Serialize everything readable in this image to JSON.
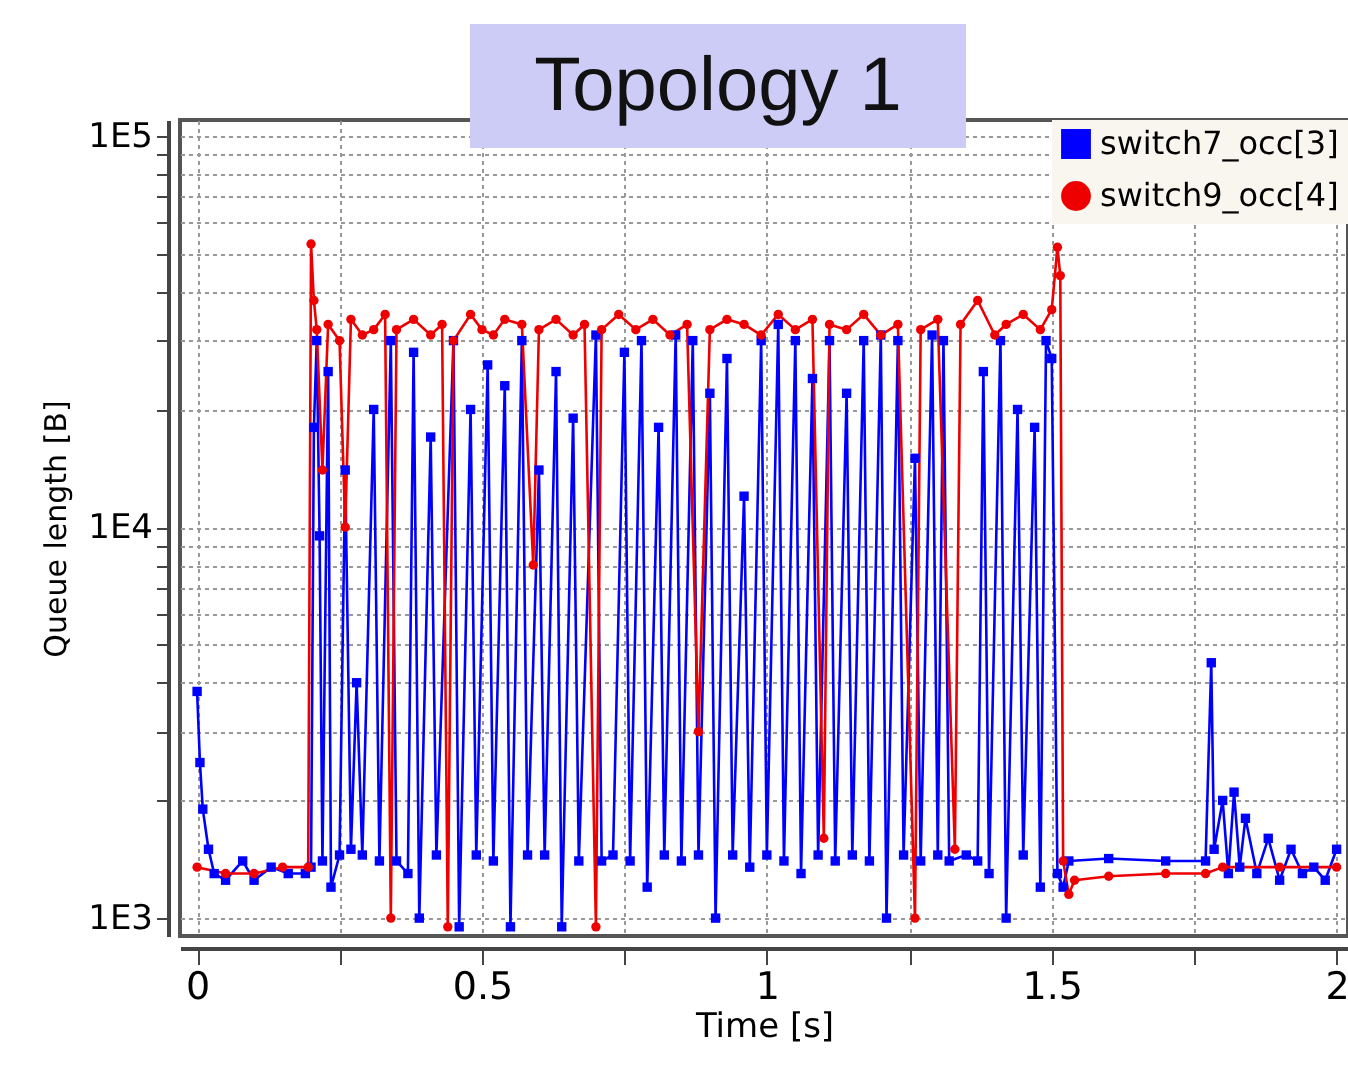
{
  "chart_data": {
    "type": "line",
    "title": "Topology 1",
    "xlabel": "Time [s]",
    "ylabel": "Queue length [B]",
    "xlim": [
      -0.03,
      2.02
    ],
    "xticks": [
      0,
      {
        "value": 0.25,
        "label": null
      },
      0.5,
      {
        "value": 0.75,
        "label": null
      },
      1,
      {
        "value": 1.25,
        "label": null
      },
      1.5,
      {
        "value": 1.75,
        "label": null
      },
      2
    ],
    "ylim": [
      900,
      110000
    ],
    "log": "y",
    "yticks": [
      {
        "value": 1000,
        "label": "1E3"
      },
      {
        "value": 2000,
        "label": null
      },
      {
        "value": 3000,
        "label": null
      },
      {
        "value": 4000,
        "label": null
      },
      {
        "value": 5000,
        "label": null
      },
      {
        "value": 6000,
        "label": null
      },
      {
        "value": 7000,
        "label": null
      },
      {
        "value": 8000,
        "label": null
      },
      {
        "value": 9000,
        "label": null
      },
      {
        "value": 10000,
        "label": "1E4"
      },
      {
        "value": 20000,
        "label": null
      },
      {
        "value": 30000,
        "label": null
      },
      {
        "value": 40000,
        "label": null
      },
      {
        "value": 50000,
        "label": null
      },
      {
        "value": 60000,
        "label": null
      },
      {
        "value": 70000,
        "label": null
      },
      {
        "value": 80000,
        "label": null
      },
      {
        "value": 90000,
        "label": null
      },
      {
        "value": 100000,
        "label": "1E5"
      }
    ],
    "grid": true,
    "legend": "top right",
    "series": [
      {
        "name": "switch7_occ[3]",
        "color": "#0000ff",
        "marker": "square",
        "x": [
          0,
          0.005,
          0.01,
          0.02,
          0.03,
          0.05,
          0.08,
          0.1,
          0.13,
          0.16,
          0.19,
          0.2,
          0.205,
          0.21,
          0.215,
          0.22,
          0.23,
          0.235,
          0.25,
          0.26,
          0.27,
          0.28,
          0.29,
          0.31,
          0.32,
          0.34,
          0.35,
          0.37,
          0.38,
          0.39,
          0.41,
          0.42,
          0.45,
          0.46,
          0.48,
          0.49,
          0.51,
          0.52,
          0.54,
          0.55,
          0.57,
          0.58,
          0.6,
          0.61,
          0.63,
          0.64,
          0.66,
          0.67,
          0.7,
          0.71,
          0.73,
          0.75,
          0.76,
          0.78,
          0.79,
          0.81,
          0.82,
          0.84,
          0.85,
          0.87,
          0.88,
          0.9,
          0.91,
          0.93,
          0.94,
          0.96,
          0.97,
          0.99,
          1.0,
          1.02,
          1.03,
          1.05,
          1.06,
          1.08,
          1.09,
          1.11,
          1.12,
          1.14,
          1.15,
          1.17,
          1.18,
          1.2,
          1.21,
          1.23,
          1.24,
          1.26,
          1.27,
          1.29,
          1.3,
          1.31,
          1.32,
          1.35,
          1.37,
          1.38,
          1.39,
          1.41,
          1.42,
          1.44,
          1.45,
          1.47,
          1.48,
          1.49,
          1.5,
          1.51,
          1.52,
          1.53,
          1.6,
          1.7,
          1.77,
          1.78,
          1.785,
          1.8,
          1.81,
          1.82,
          1.83,
          1.84,
          1.86,
          1.88,
          1.9,
          1.92,
          1.94,
          1.96,
          1.98,
          2.0
        ],
        "values": [
          3800,
          2500,
          1900,
          1500,
          1300,
          1250,
          1400,
          1250,
          1350,
          1300,
          1300,
          1350,
          18000,
          30000,
          9500,
          1400,
          25000,
          1200,
          1450,
          14000,
          1500,
          4000,
          1450,
          20000,
          1400,
          30000,
          1400,
          1300,
          28000,
          1000,
          17000,
          1450,
          30000,
          950,
          20000,
          1450,
          26000,
          1400,
          23000,
          950,
          30000,
          1450,
          14000,
          1450,
          25000,
          950,
          19000,
          1400,
          31000,
          1400,
          1450,
          28000,
          1400,
          30000,
          1200,
          18000,
          1450,
          31000,
          1400,
          30000,
          1450,
          22000,
          1000,
          27000,
          1450,
          12000,
          1350,
          30000,
          1450,
          33000,
          1400,
          30000,
          1300,
          24000,
          1450,
          30000,
          1400,
          22000,
          1450,
          30000,
          1400,
          31000,
          1000,
          30000,
          1450,
          15000,
          1400,
          31000,
          1450,
          30000,
          1400,
          1450,
          1400,
          25000,
          1300,
          30000,
          1000,
          20000,
          1450,
          18000,
          1200,
          30000,
          27000,
          1300,
          1200,
          1400,
          1420,
          1400,
          1400,
          4500,
          1500,
          2000,
          1300,
          2100,
          1350,
          1800,
          1300,
          1600,
          1250,
          1500,
          1300,
          1350,
          1250,
          1500
        ]
      },
      {
        "name": "switch9_occ[4]",
        "color": "#ee0000",
        "marker": "circle",
        "x": [
          0,
          0.05,
          0.1,
          0.15,
          0.195,
          0.2,
          0.205,
          0.21,
          0.22,
          0.23,
          0.25,
          0.26,
          0.27,
          0.29,
          0.31,
          0.33,
          0.34,
          0.35,
          0.38,
          0.41,
          0.43,
          0.44,
          0.45,
          0.48,
          0.5,
          0.52,
          0.54,
          0.57,
          0.59,
          0.6,
          0.63,
          0.66,
          0.68,
          0.7,
          0.71,
          0.74,
          0.77,
          0.8,
          0.83,
          0.86,
          0.88,
          0.9,
          0.93,
          0.96,
          0.99,
          1.02,
          1.05,
          1.08,
          1.1,
          1.11,
          1.14,
          1.17,
          1.2,
          1.23,
          1.26,
          1.27,
          1.3,
          1.33,
          1.34,
          1.37,
          1.4,
          1.42,
          1.45,
          1.48,
          1.5,
          1.51,
          1.515,
          1.52,
          1.53,
          1.54,
          1.6,
          1.7,
          1.77,
          1.8,
          1.9,
          2.0
        ],
        "values": [
          1350,
          1300,
          1300,
          1350,
          1350,
          53000,
          38000,
          32000,
          14000,
          33000,
          30000,
          10000,
          34000,
          31000,
          32000,
          35000,
          1000,
          32000,
          34000,
          31000,
          33000,
          950,
          30000,
          35000,
          32000,
          31000,
          34000,
          33000,
          8000,
          32000,
          34000,
          31000,
          33000,
          950,
          32000,
          35000,
          32000,
          34000,
          31000,
          33000,
          3000,
          32000,
          34000,
          33000,
          31000,
          35000,
          32000,
          34000,
          1600,
          33000,
          32000,
          35000,
          31000,
          33000,
          1000,
          32000,
          34000,
          1500,
          33000,
          38000,
          31000,
          33000,
          35000,
          32000,
          36000,
          52000,
          44000,
          1400,
          1150,
          1250,
          1280,
          1300,
          1300,
          1350,
          1350,
          1350
        ]
      }
    ]
  }
}
